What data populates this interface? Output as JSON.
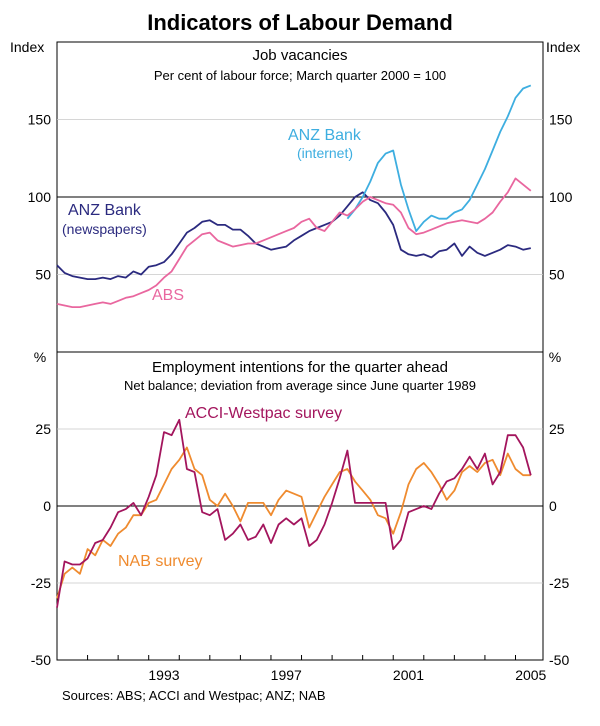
{
  "title": "Indicators of Labour Demand",
  "source": "Sources: ABS; ACCI and Westpac; ANZ; NAB",
  "colors": {
    "anz_news": "#2b2a7f",
    "anz_internet": "#3eaee0",
    "abs": "#e9679f",
    "acci": "#a3155d",
    "nab": "#ef8b2f"
  },
  "chart_data": [
    {
      "type": "line",
      "title": "Job vacancies",
      "subtitle": "Per cent of labour force; March quarter 2000 = 100",
      "ylabel_left": "Index",
      "ylabel_right": "Index",
      "ylim": [
        0,
        200
      ],
      "yticks": [
        50,
        100,
        150
      ],
      "reference_line": 100,
      "series": [
        {
          "name": "ANZ Bank (newspapers)",
          "label_lines": [
            "ANZ Bank",
            "(newspapers)"
          ],
          "color_key": "anz_news",
          "x": [
            1990.0,
            1990.25,
            1990.5,
            1990.75,
            1991.0,
            1991.25,
            1991.5,
            1991.75,
            1992.0,
            1992.25,
            1992.5,
            1992.75,
            1993.0,
            1993.25,
            1993.5,
            1993.75,
            1994.0,
            1994.25,
            1994.5,
            1994.75,
            1995.0,
            1995.25,
            1995.5,
            1995.75,
            1996.0,
            1996.25,
            1996.5,
            1996.75,
            1997.0,
            1997.25,
            1997.5,
            1997.75,
            1998.0,
            1998.25,
            1998.5,
            1998.75,
            1999.0,
            1999.25,
            1999.5,
            1999.75,
            2000.0,
            2000.25,
            2000.5,
            2000.75,
            2001.0,
            2001.25,
            2001.5,
            2001.75,
            2002.0,
            2002.25,
            2002.5,
            2002.75,
            2003.0,
            2003.25,
            2003.5,
            2003.75,
            2004.0,
            2004.25,
            2004.5,
            2004.75,
            2005.0,
            2005.25,
            2005.5
          ],
          "values": [
            56,
            51,
            49,
            48,
            47,
            47,
            48,
            47,
            49,
            48,
            52,
            50,
            55,
            56,
            58,
            63,
            70,
            77,
            80,
            84,
            85,
            82,
            82,
            79,
            79,
            75,
            70,
            68,
            66,
            67,
            68,
            72,
            75,
            78,
            80,
            82,
            84,
            88,
            94,
            100,
            103,
            98,
            96,
            90,
            82,
            66,
            63,
            62,
            63,
            61,
            65,
            66,
            70,
            62,
            68,
            64,
            62,
            64,
            66,
            69,
            68,
            66,
            67
          ]
        },
        {
          "name": "ANZ Bank (internet)",
          "label_lines": [
            "ANZ Bank",
            "(internet)"
          ],
          "color_key": "anz_internet",
          "x": [
            1999.5,
            1999.75,
            2000.0,
            2000.25,
            2000.5,
            2000.75,
            2001.0,
            2001.25,
            2001.5,
            2001.75,
            2002.0,
            2002.25,
            2002.5,
            2002.75,
            2003.0,
            2003.25,
            2003.5,
            2003.75,
            2004.0,
            2004.25,
            2004.5,
            2004.75,
            2005.0,
            2005.25,
            2005.5
          ],
          "values": [
            86,
            92,
            100,
            110,
            122,
            128,
            130,
            108,
            92,
            78,
            84,
            88,
            86,
            86,
            90,
            92,
            98,
            108,
            118,
            130,
            142,
            152,
            164,
            170,
            172
          ]
        },
        {
          "name": "ABS",
          "label_lines": [
            "ABS"
          ],
          "color_key": "abs",
          "x": [
            1990.0,
            1990.25,
            1990.5,
            1990.75,
            1991.0,
            1991.25,
            1991.5,
            1991.75,
            1992.0,
            1992.25,
            1992.5,
            1992.75,
            1993.0,
            1993.25,
            1993.5,
            1993.75,
            1994.0,
            1994.25,
            1994.5,
            1994.75,
            1995.0,
            1995.25,
            1995.5,
            1995.75,
            1996.0,
            1996.25,
            1996.5,
            1996.75,
            1997.0,
            1997.25,
            1997.5,
            1997.75,
            1998.0,
            1998.25,
            1998.5,
            1998.75,
            1999.0,
            1999.25,
            1999.5,
            1999.75,
            2000.0,
            2000.25,
            2000.5,
            2000.75,
            2001.0,
            2001.25,
            2001.5,
            2001.75,
            2002.0,
            2002.25,
            2002.5,
            2002.75,
            2003.0,
            2003.25,
            2003.5,
            2003.75,
            2004.0,
            2004.25,
            2004.5,
            2004.75,
            2005.0,
            2005.25,
            2005.5
          ],
          "values": [
            31,
            30,
            29,
            29,
            30,
            31,
            32,
            31,
            33,
            35,
            36,
            38,
            40,
            43,
            48,
            52,
            60,
            68,
            72,
            76,
            77,
            72,
            70,
            68,
            69,
            70,
            70,
            72,
            74,
            76,
            78,
            80,
            84,
            86,
            80,
            78,
            84,
            90,
            88,
            92,
            97,
            100,
            98,
            96,
            95,
            90,
            80,
            76,
            77,
            79,
            81,
            83,
            84,
            85,
            84,
            83,
            86,
            90,
            97,
            103,
            112,
            108,
            104
          ]
        }
      ],
      "labels": {
        "anz_news_1": "ANZ Bank",
        "anz_news_2": "(newspapers)",
        "anz_internet_1": "ANZ Bank",
        "anz_internet_2": "(internet)",
        "abs": "ABS"
      }
    },
    {
      "type": "line",
      "title": "Employment intentions for the quarter ahead",
      "subtitle": "Net balance; deviation from average since June quarter 1989",
      "ylabel_left": "%",
      "ylabel_right": "%",
      "ylim": [
        -50,
        50
      ],
      "yticks": [
        -50,
        -25,
        0,
        25
      ],
      "xlim": [
        1990,
        2005.9
      ],
      "xticks": [
        1993,
        1997,
        2001,
        2005
      ],
      "series": [
        {
          "name": "ACCI-Westpac survey",
          "color_key": "acci",
          "x": [
            1990.0,
            1990.25,
            1990.5,
            1990.75,
            1991.0,
            1991.25,
            1991.5,
            1991.75,
            1992.0,
            1992.25,
            1992.5,
            1992.75,
            1993.0,
            1993.25,
            1993.5,
            1993.75,
            1994.0,
            1994.25,
            1994.5,
            1994.75,
            1995.0,
            1995.25,
            1995.5,
            1995.75,
            1996.0,
            1996.25,
            1996.5,
            1996.75,
            1997.0,
            1997.25,
            1997.5,
            1997.75,
            1998.0,
            1998.25,
            1998.5,
            1998.75,
            1999.0,
            1999.25,
            1999.5,
            1999.75,
            2000.0,
            2000.25,
            2000.5,
            2000.75,
            2001.0,
            2001.25,
            2001.5,
            2001.75,
            2002.0,
            2002.25,
            2002.5,
            2002.75,
            2003.0,
            2003.25,
            2003.5,
            2003.75,
            2004.0,
            2004.25,
            2004.5,
            2004.75,
            2005.0,
            2005.25,
            2005.5
          ],
          "values": [
            -33,
            -18,
            -19,
            -19,
            -17,
            -12,
            -11,
            -7,
            -2,
            -1,
            1,
            -3,
            3,
            10,
            24,
            23,
            28,
            12,
            11,
            -2,
            -3,
            -1,
            -11,
            -9,
            -6,
            -11,
            -10,
            -6,
            -12,
            -6,
            -4,
            -6,
            -4,
            -13,
            -11,
            -6,
            1,
            9,
            18,
            1,
            1,
            1,
            1,
            1,
            -14,
            -11,
            -2,
            -1,
            0,
            -1,
            4,
            8,
            9,
            12,
            16,
            12,
            17,
            7,
            11,
            23,
            23,
            19,
            10
          ]
        },
        {
          "name": "NAB survey",
          "color_key": "nab",
          "x": [
            1990.0,
            1990.25,
            1990.5,
            1990.75,
            1991.0,
            1991.25,
            1991.5,
            1991.75,
            1992.0,
            1992.25,
            1992.5,
            1992.75,
            1993.0,
            1993.25,
            1993.5,
            1993.75,
            1994.0,
            1994.25,
            1994.5,
            1994.75,
            1995.0,
            1995.25,
            1995.5,
            1995.75,
            1996.0,
            1996.25,
            1996.5,
            1996.75,
            1997.0,
            1997.25,
            1997.5,
            1997.75,
            1998.0,
            1998.25,
            1998.5,
            1998.75,
            1999.0,
            1999.25,
            1999.5,
            1999.75,
            2000.0,
            2000.25,
            2000.5,
            2000.75,
            2001.0,
            2001.25,
            2001.5,
            2001.75,
            2002.0,
            2002.25,
            2002.5,
            2002.75,
            2003.0,
            2003.25,
            2003.5,
            2003.75,
            2004.0,
            2004.25,
            2004.5,
            2004.75,
            2005.0,
            2005.25,
            2005.5
          ],
          "values": [
            -30,
            -22,
            -20,
            -22,
            -14,
            -16,
            -11,
            -13,
            -9,
            -7,
            -3,
            -3,
            1,
            2,
            7,
            12,
            15,
            19,
            12,
            10,
            2,
            0,
            4,
            0,
            -5,
            1,
            1,
            1,
            -3,
            2,
            5,
            4,
            3,
            -7,
            -2,
            3,
            7,
            11,
            12,
            8,
            5,
            2,
            -3,
            -4,
            -9,
            -2,
            7,
            12,
            14,
            11,
            7,
            2,
            5,
            11,
            13,
            11,
            14,
            15,
            10,
            17,
            12,
            10,
            10
          ]
        }
      ],
      "labels": {
        "acci": "ACCI-Westpac survey",
        "nab": "NAB survey"
      }
    }
  ]
}
